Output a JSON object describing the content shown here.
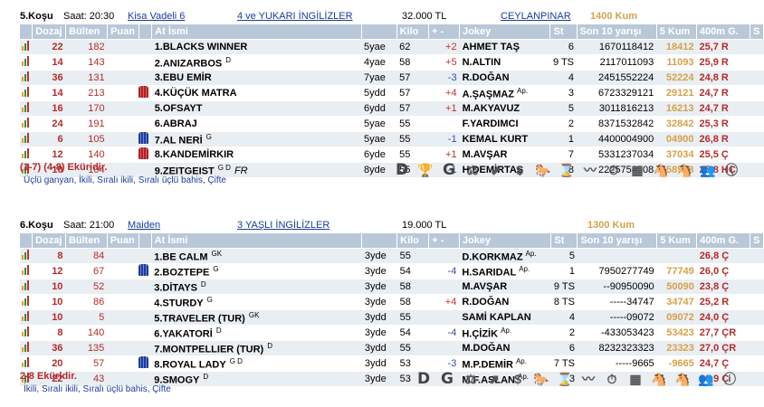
{
  "races": [
    {
      "title": "5.Koşu",
      "time_label": "Saat: 20:30",
      "type_link": "Kisa Vadeli 6",
      "class_link": "4 ve YUKARI İNGİLİZLER",
      "prize": "32.000 TL",
      "venue_link": "CEYLANPINAR",
      "track": "1400 Kum",
      "headers": [
        "Dozaj",
        "Bülten",
        "Puan",
        "At İsmi",
        "",
        "Kilo",
        "+ -",
        "Jokey",
        "St",
        "Son 10 yarışı",
        "5 Kum",
        "400m G.",
        "S"
      ],
      "rows": [
        {
          "doz": "22",
          "bul": "182",
          "puan": "",
          "silk": "",
          "name": "1.BLACKS WINNER",
          "sup": "",
          "age": "5yae",
          "kilo": "62",
          "pm": "+2",
          "jokey": "AHMET TAŞ",
          "jsup": "",
          "st": "6",
          "son": "1670118412",
          "kum": "18412",
          "g400": "25,7 R"
        },
        {
          "doz": "14",
          "bul": "143",
          "puan": "",
          "silk": "",
          "name": "2.ANIZARBOS",
          "sup": "D",
          "age": "4yae",
          "kilo": "58",
          "pm": "+5",
          "jokey": "N.ALTIN",
          "jsup": "",
          "st": "9 TS",
          "son": "2117011093",
          "kum": "11093",
          "g400": "25,9 R"
        },
        {
          "doz": "36",
          "bul": "131",
          "puan": "",
          "silk": "",
          "name": "3.EBU EMİR",
          "sup": "",
          "age": "7yae",
          "kilo": "57",
          "pm": "-3",
          "jokey": "R.DOĞAN",
          "jsup": "",
          "st": "4",
          "son": "2451552224",
          "kum": "52224",
          "g400": "24,8 R"
        },
        {
          "doz": "14",
          "bul": "213",
          "puan": "",
          "silk": "red",
          "name": "4.KÜÇÜK MATRA",
          "sup": "",
          "age": "5ydd",
          "kilo": "57",
          "pm": "+4",
          "jokey": "A.ŞAŞMAZ",
          "jsup": "Ap.",
          "st": "3",
          "son": "6723329121",
          "kum": "29121",
          "g400": "24,7 R"
        },
        {
          "doz": "16",
          "bul": "170",
          "puan": "",
          "silk": "",
          "name": "5.OFSAYT",
          "sup": "",
          "age": "6ydd",
          "kilo": "57",
          "pm": "+1",
          "jokey": "M.AKYAVUZ",
          "jsup": "",
          "st": "5",
          "son": "3011816213",
          "kum": "16213",
          "g400": "24,7 R"
        },
        {
          "doz": "24",
          "bul": "191",
          "puan": "",
          "silk": "",
          "name": "6.ABRAJ",
          "sup": "",
          "age": "5yae",
          "kilo": "55",
          "pm": "",
          "jokey": "F.YARDIMCI",
          "jsup": "",
          "st": "2",
          "son": "8371532842",
          "kum": "32842",
          "g400": "25,3 R"
        },
        {
          "doz": "6",
          "bul": "105",
          "puan": "",
          "silk": "blue",
          "name": "7.AL NERİ",
          "sup": "G",
          "age": "5yae",
          "kilo": "55",
          "pm": "-1",
          "jokey": "KEMAL KURT",
          "jsup": "",
          "st": "1",
          "son": "4400004900",
          "kum": "04900",
          "g400": "26,8 R"
        },
        {
          "doz": "12",
          "bul": "140",
          "puan": "",
          "silk": "red",
          "name": "8.KANDEMİRKIR",
          "sup": "",
          "age": "6yde",
          "kilo": "55",
          "pm": "+1",
          "jokey": "M.AVŞAR",
          "jsup": "",
          "st": "7",
          "son": "5331237034",
          "kum": "37034",
          "g400": "25,5 Ç"
        },
        {
          "doz": "10",
          "bul": "104",
          "puan": "",
          "silk": "",
          "name": "9.ZEITGEIST",
          "sup": "G D",
          "extra": "FR",
          "age": "8yde",
          "kilo": "55",
          "pm": "-1",
          "jokey": "H.DEMİRTAŞ",
          "jsup": "",
          "st": "8",
          "son": "2225758508",
          "kum": "58508",
          "g400": "25,8 HÇ"
        }
      ],
      "note_red": "(1-7) (4-8) Eküridir.",
      "note_bets": "Üçlü ganyan, İkili, Sıralı ikili, Sıralı üçlü bahis, Çifte"
    },
    {
      "title": "6.Koşu",
      "time_label": "Saat: 21:00",
      "type_link": "Maiden",
      "class_link": "3 YAŞLI İNGİLİZLER",
      "prize": "19.000 TL",
      "venue_link": "",
      "track": "1300 Kum",
      "headers": [
        "Dozaj",
        "Bülten",
        "Puan",
        "At İsmi",
        "",
        "Kilo",
        "+ -",
        "Jokey",
        "St",
        "Son 10 yarışı",
        "5 Kum",
        "400m G.",
        "S"
      ],
      "rows": [
        {
          "doz": "8",
          "bul": "84",
          "puan": "",
          "silk": "",
          "name": "1.BE CALM",
          "sup": "GK",
          "age": "3yde",
          "kilo": "55",
          "pm": "",
          "jokey": "D.KORKMAZ",
          "jsup": "Ap.",
          "st": "5",
          "son": "",
          "kum": "",
          "g400": "26,8 Ç"
        },
        {
          "doz": "12",
          "bul": "67",
          "puan": "",
          "silk": "blue",
          "name": "2.BOZTEPE",
          "sup": "G",
          "age": "3yde",
          "kilo": "54",
          "pm": "-4",
          "jokey": "H.SARIDAL",
          "jsup": "Ap.",
          "st": "1",
          "son": "7950277749",
          "kum": "77749",
          "g400": "26,0 Ç"
        },
        {
          "doz": "10",
          "bul": "52",
          "puan": "",
          "silk": "",
          "name": "3.DİTAYS",
          "sup": "D",
          "age": "3yde",
          "kilo": "58",
          "pm": "",
          "jokey": "M.AVŞAR",
          "jsup": "",
          "st": "9 TS",
          "son": "--90950090",
          "kum": "50090",
          "g400": "23,8 Ç"
        },
        {
          "doz": "10",
          "bul": "86",
          "puan": "",
          "silk": "",
          "name": "4.STURDY",
          "sup": "G",
          "age": "3yde",
          "kilo": "58",
          "pm": "+4",
          "jokey": "R.DOĞAN",
          "jsup": "",
          "st": "8 TS",
          "son": "-----34747",
          "kum": "34747",
          "g400": "25,2 R"
        },
        {
          "doz": "10",
          "bul": "5",
          "puan": "",
          "silk": "",
          "name": "5.TRAVELER (TUR)",
          "sup": "GK",
          "age": "3ydd",
          "kilo": "55",
          "pm": "",
          "jokey": "SAMİ KAPLAN",
          "jsup": "",
          "st": "4",
          "son": "-----09072",
          "kum": "09072",
          "g400": "24,0 Ç"
        },
        {
          "doz": "8",
          "bul": "140",
          "puan": "",
          "silk": "",
          "name": "6.YAKATORİ",
          "sup": "D",
          "age": "3yde",
          "kilo": "54",
          "pm": "-4",
          "jokey": "H.ÇİZİK",
          "jsup": "Ap.",
          "st": "2",
          "son": "-433053423",
          "kum": "53423",
          "g400": "27,7 ÇR"
        },
        {
          "doz": "36",
          "bul": "135",
          "puan": "",
          "silk": "",
          "name": "7.MONTPELLIER (TUR)",
          "sup": "D",
          "age": "3ydd",
          "kilo": "55",
          "pm": "",
          "jokey": "M.DOĞAN",
          "jsup": "",
          "st": "6",
          "son": "8232323323",
          "kum": "23323",
          "g400": "27,0 ÇR"
        },
        {
          "doz": "20",
          "bul": "57",
          "puan": "",
          "silk": "blue",
          "name": "8.ROYAL LADY",
          "sup": "G D",
          "age": "3ydd",
          "kilo": "53",
          "pm": "-3",
          "jokey": "M.P.DEMİR",
          "jsup": "Ap.",
          "st": "7 TS",
          "son": "-----9665",
          "kum": "-9665",
          "g400": "24,7 Ç"
        },
        {
          "doz": "22",
          "bul": "43",
          "puan": "",
          "silk": "",
          "name": "9.SMOGY",
          "sup": "D",
          "age": "3yde",
          "kilo": "53",
          "pm": "",
          "jokey": "M.F.ASLAN",
          "jsup": "Ap.",
          "st": "3",
          "son": "",
          "kum": "",
          "g400": "26,9 Ç"
        }
      ],
      "note_red": "2-8 Ekürldir.",
      "note_bets": "İkili, Sıralı ikili, Sıralı üçlü bahis, Çifte"
    }
  ],
  "toolbar1_icons": [
    "D",
    "🏆",
    "G",
    "⚖",
    "⬈",
    "$",
    "🐎",
    "⌛",
    "〰",
    "⏱",
    "▦",
    "🐴",
    "🐴",
    "👥",
    "ⓘ"
  ],
  "toolbar2_icons": [
    "D",
    "G",
    "⚖",
    "⬈",
    "$",
    "🐎",
    "⌛",
    "〰",
    "⏱",
    "▦",
    "🐴",
    "🐴",
    "👥",
    "ⓘ"
  ],
  "toolbar1_names": [
    "d-icon",
    "trophy-icon",
    "g-icon",
    "weight-icon",
    "trend-icon",
    "dollar-icon",
    "horses-icon",
    "hourglass-icon",
    "line-chart-icon",
    "stopwatch-icon",
    "calculator-icon",
    "horse-head-icon",
    "horse-head-2-icon",
    "group-icon",
    "info-icon"
  ],
  "toolbar2_names": [
    "d-icon",
    "g-icon",
    "weight-icon",
    "trend-icon",
    "dollar-icon",
    "horses-icon",
    "hourglass-icon",
    "line-chart-icon",
    "stopwatch-icon",
    "calculator-icon",
    "horse-head-icon",
    "horse-head-2-icon",
    "group-icon",
    "info-icon"
  ]
}
